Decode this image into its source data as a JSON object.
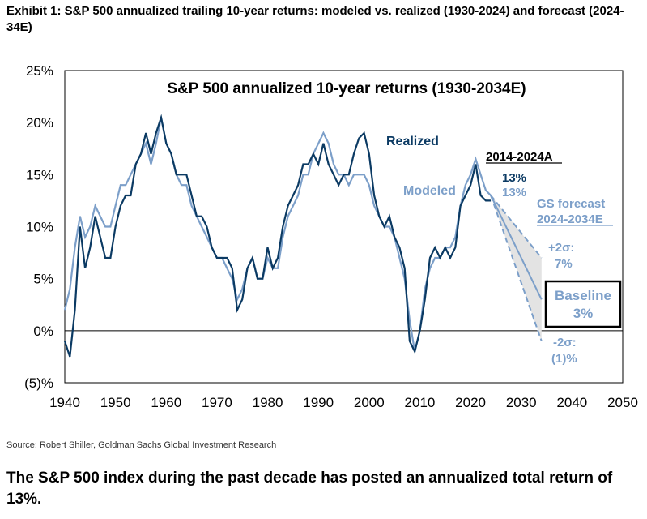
{
  "exhibit_title": "Exhibit 1: S&P 500 annualized trailing 10-year returns: modeled vs. realized (1930-2024) and forecast (2024-34E)",
  "source": "Source: Robert Shiller, Goldman Sachs Global Investment Research",
  "caption": "The S&P 500 index during the past decade has posted an annualized total return of 13%.",
  "colors": {
    "realized": "#0b3a63",
    "modeled": "#7c9fc9",
    "forecast_band": "#e3e3e3",
    "axis": "#000000"
  },
  "chart_data": {
    "type": "line",
    "title": "S&P 500 annualized 10-year returns (1930-2034E)",
    "xlabel": "",
    "ylabel": "",
    "xlim": [
      1940,
      2050
    ],
    "ylim": [
      -5,
      25
    ],
    "x_ticks": [
      1940,
      1950,
      1960,
      1970,
      1980,
      1990,
      2000,
      2010,
      2020,
      2030,
      2040,
      2050
    ],
    "y_ticks": [
      {
        "value": 25,
        "label": "25%"
      },
      {
        "value": 20,
        "label": "20%"
      },
      {
        "value": 15,
        "label": "15%"
      },
      {
        "value": 10,
        "label": "10%"
      },
      {
        "value": 5,
        "label": "5%"
      },
      {
        "value": 0,
        "label": "0%"
      },
      {
        "value": -5,
        "label": "(5)%"
      }
    ],
    "grid": false,
    "series": [
      {
        "name": "Realized",
        "points": [
          [
            1940,
            -1
          ],
          [
            1941,
            -2.5
          ],
          [
            1942,
            2
          ],
          [
            1943,
            10
          ],
          [
            1944,
            6
          ],
          [
            1945,
            8
          ],
          [
            1946,
            11
          ],
          [
            1947,
            9
          ],
          [
            1948,
            7
          ],
          [
            1949,
            7
          ],
          [
            1950,
            10
          ],
          [
            1951,
            12
          ],
          [
            1952,
            13
          ],
          [
            1953,
            13
          ],
          [
            1954,
            16
          ],
          [
            1955,
            17
          ],
          [
            1956,
            19
          ],
          [
            1957,
            17
          ],
          [
            1958,
            19
          ],
          [
            1959,
            20.5
          ],
          [
            1960,
            18
          ],
          [
            1961,
            17
          ],
          [
            1962,
            15
          ],
          [
            1963,
            15
          ],
          [
            1964,
            15
          ],
          [
            1965,
            13
          ],
          [
            1966,
            11
          ],
          [
            1967,
            11
          ],
          [
            1968,
            10
          ],
          [
            1969,
            8
          ],
          [
            1970,
            7
          ],
          [
            1971,
            7
          ],
          [
            1972,
            7
          ],
          [
            1973,
            6
          ],
          [
            1974,
            2
          ],
          [
            1975,
            3
          ],
          [
            1976,
            6
          ],
          [
            1977,
            7
          ],
          [
            1978,
            5
          ],
          [
            1979,
            5
          ],
          [
            1980,
            8
          ],
          [
            1981,
            6
          ],
          [
            1982,
            7
          ],
          [
            1983,
            10
          ],
          [
            1984,
            12
          ],
          [
            1985,
            13
          ],
          [
            1986,
            14
          ],
          [
            1987,
            16
          ],
          [
            1988,
            16
          ],
          [
            1989,
            17
          ],
          [
            1990,
            16
          ],
          [
            1991,
            18
          ],
          [
            1992,
            16
          ],
          [
            1993,
            15
          ],
          [
            1994,
            14
          ],
          [
            1995,
            15
          ],
          [
            1996,
            15
          ],
          [
            1997,
            17
          ],
          [
            1998,
            18.5
          ],
          [
            1999,
            19
          ],
          [
            2000,
            17
          ],
          [
            2001,
            13
          ],
          [
            2002,
            11
          ],
          [
            2003,
            10
          ],
          [
            2004,
            11
          ],
          [
            2005,
            9
          ],
          [
            2006,
            8
          ],
          [
            2007,
            6
          ],
          [
            2008,
            -1
          ],
          [
            2009,
            -2
          ],
          [
            2010,
            0
          ],
          [
            2011,
            3
          ],
          [
            2012,
            7
          ],
          [
            2013,
            8
          ],
          [
            2014,
            7
          ],
          [
            2015,
            8
          ],
          [
            2016,
            7
          ],
          [
            2017,
            8
          ],
          [
            2018,
            12
          ],
          [
            2019,
            13
          ],
          [
            2020,
            14
          ],
          [
            2021,
            16
          ],
          [
            2022,
            13
          ],
          [
            2023,
            12.5
          ],
          [
            2024,
            12.5
          ]
        ]
      },
      {
        "name": "Modeled",
        "points": [
          [
            1940,
            2
          ],
          [
            1941,
            4
          ],
          [
            1942,
            8
          ],
          [
            1943,
            11
          ],
          [
            1944,
            9
          ],
          [
            1945,
            10
          ],
          [
            1946,
            12
          ],
          [
            1947,
            11
          ],
          [
            1948,
            10
          ],
          [
            1949,
            10
          ],
          [
            1950,
            12
          ],
          [
            1951,
            14
          ],
          [
            1952,
            14
          ],
          [
            1953,
            15
          ],
          [
            1954,
            16
          ],
          [
            1955,
            17
          ],
          [
            1956,
            18
          ],
          [
            1957,
            16
          ],
          [
            1958,
            18
          ],
          [
            1959,
            20.5
          ],
          [
            1960,
            18
          ],
          [
            1961,
            17
          ],
          [
            1962,
            15
          ],
          [
            1963,
            14
          ],
          [
            1964,
            14
          ],
          [
            1965,
            12
          ],
          [
            1966,
            11
          ],
          [
            1967,
            10
          ],
          [
            1968,
            9
          ],
          [
            1969,
            8
          ],
          [
            1970,
            7
          ],
          [
            1971,
            7
          ],
          [
            1972,
            6
          ],
          [
            1973,
            5
          ],
          [
            1974,
            3
          ],
          [
            1975,
            4
          ],
          [
            1976,
            6
          ],
          [
            1977,
            7
          ],
          [
            1978,
            5
          ],
          [
            1979,
            5
          ],
          [
            1980,
            7
          ],
          [
            1981,
            6
          ],
          [
            1982,
            6
          ],
          [
            1983,
            9
          ],
          [
            1984,
            11
          ],
          [
            1985,
            12
          ],
          [
            1986,
            13
          ],
          [
            1987,
            15
          ],
          [
            1988,
            15
          ],
          [
            1989,
            17
          ],
          [
            1990,
            18
          ],
          [
            1991,
            19
          ],
          [
            1992,
            18
          ],
          [
            1993,
            16
          ],
          [
            1994,
            15
          ],
          [
            1995,
            15
          ],
          [
            1996,
            14
          ],
          [
            1997,
            15
          ],
          [
            1998,
            15
          ],
          [
            1999,
            15
          ],
          [
            2000,
            14
          ],
          [
            2001,
            12
          ],
          [
            2002,
            11
          ],
          [
            2003,
            10
          ],
          [
            2004,
            10
          ],
          [
            2005,
            9
          ],
          [
            2006,
            7
          ],
          [
            2007,
            5
          ],
          [
            2008,
            1
          ],
          [
            2009,
            -2
          ],
          [
            2010,
            0
          ],
          [
            2011,
            4
          ],
          [
            2012,
            6
          ],
          [
            2013,
            7
          ],
          [
            2014,
            7
          ],
          [
            2015,
            8
          ],
          [
            2016,
            8
          ],
          [
            2017,
            9
          ],
          [
            2018,
            12
          ],
          [
            2019,
            14
          ],
          [
            2020,
            15
          ],
          [
            2021,
            16.5
          ],
          [
            2022,
            15
          ],
          [
            2023,
            13.5
          ],
          [
            2024,
            13
          ]
        ]
      }
    ],
    "forecast": {
      "start": {
        "x": 2024,
        "y": 13
      },
      "baseline": {
        "x": 2034,
        "y": 3
      },
      "upper": {
        "x": 2034,
        "y": 7
      },
      "lower": {
        "x": 2034,
        "y": -1
      }
    },
    "annotations": {
      "realized_label": "Realized",
      "modeled_label": "Modeled",
      "period_label": "2014-2024A",
      "realized_value": "13%",
      "modeled_value": "13%",
      "forecast_line1": "GS forecast",
      "forecast_line2": "2024-2034E",
      "upper_line1": "+2σ:",
      "upper_line2": "7%",
      "baseline_line1": "Baseline",
      "baseline_line2": "3%",
      "lower_line1": "-2σ:",
      "lower_line2": "(1)%"
    }
  }
}
